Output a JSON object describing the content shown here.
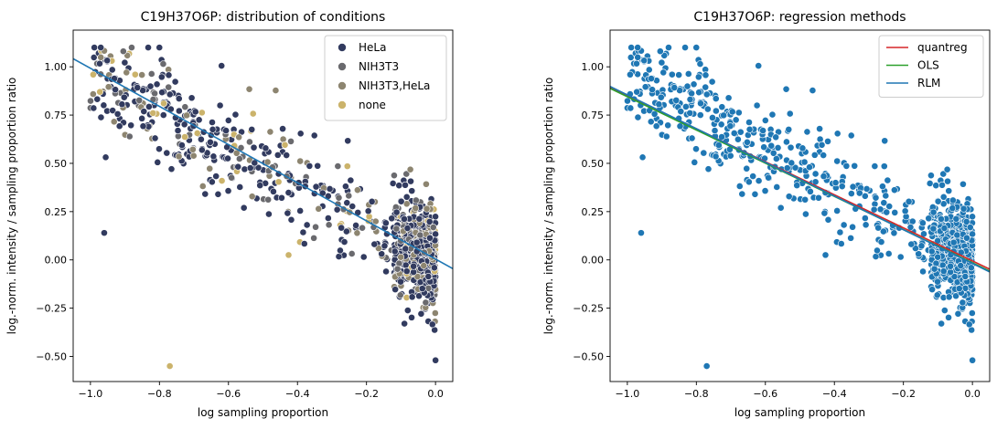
{
  "figure": {
    "colors": {
      "HeLa": "#323b5f",
      "NIH3T3": "#6a6a6e",
      "NIH3T3,HeLa": "#8d8570",
      "none": "#cbb36b",
      "panel2_points": "#1f77b4",
      "quantreg": "#d62728",
      "OLS": "#2ca02c",
      "RLM": "#1f77b4"
    }
  },
  "chart_data": [
    {
      "type": "scatter",
      "title": "C19H37O6P: distribution of conditions",
      "xlabel": "log sampling proportion",
      "ylabel": "log.-norm. intensity / sampling proportion ratio",
      "xlim": [
        -1.05,
        0.05
      ],
      "ylim": [
        -0.63,
        1.19
      ],
      "xticks": [
        -1.0,
        -0.8,
        -0.6,
        -0.4,
        -0.2,
        0.0
      ],
      "xtick_labels": [
        "−1.0",
        "−0.8",
        "−0.6",
        "−0.4",
        "−0.2",
        "0.0"
      ],
      "yticks": [
        -0.5,
        -0.25,
        0.0,
        0.25,
        0.5,
        0.75,
        1.0
      ],
      "ytick_labels": [
        "−0.50",
        "−0.25",
        "0.00",
        "0.25",
        "0.50",
        "0.75",
        "1.00"
      ],
      "legend": {
        "placement": "upper right",
        "entries": [
          "HeLa",
          "NIH3T3",
          "NIH3T3,HeLa",
          "none"
        ]
      },
      "series": [
        {
          "name": "HeLa",
          "marker": "circle",
          "point_count": 620
        },
        {
          "name": "NIH3T3",
          "marker": "circle",
          "point_count": 150
        },
        {
          "name": "NIH3T3,HeLa",
          "marker": "circle",
          "point_count": 140
        },
        {
          "name": "none",
          "marker": "circle",
          "point_count": 60
        }
      ],
      "fit_lines": [
        {
          "kind": "regression",
          "x": [
            -1.05,
            0.05
          ],
          "y": [
            1.042,
            -0.045
          ]
        }
      ],
      "notable_points": [
        {
          "x": -0.97,
          "y": 1.1
        },
        {
          "x": -0.96,
          "y": 0.14
        },
        {
          "x": -0.77,
          "y": -0.55
        },
        {
          "x": 0.0,
          "y": -0.52
        }
      ],
      "trend": {
        "slope": -0.985,
        "intercept": -0.006,
        "noise_sd": 0.13
      }
    },
    {
      "type": "scatter",
      "title": "C19H37O6P: regression methods",
      "xlabel": "log sampling proportion",
      "ylabel": "log.-norm. intensity / sampling proportion ratio",
      "xlim": [
        -1.05,
        0.05
      ],
      "ylim": [
        -0.63,
        1.19
      ],
      "xticks": [
        -1.0,
        -0.8,
        -0.6,
        -0.4,
        -0.2,
        0.0
      ],
      "xtick_labels": [
        "−1.0",
        "−0.8",
        "−0.6",
        "−0.4",
        "−0.2",
        "0.0"
      ],
      "yticks": [
        -0.5,
        -0.25,
        0.0,
        0.25,
        0.5,
        0.75,
        1.0
      ],
      "ytick_labels": [
        "−0.50",
        "−0.25",
        "0.00",
        "0.25",
        "0.50",
        "0.75",
        "1.00"
      ],
      "legend": {
        "placement": "upper right",
        "entries": [
          "quantreg",
          "OLS",
          "RLM"
        ]
      },
      "fit_lines": [
        {
          "name": "quantreg",
          "x": [
            -1.05,
            0.05
          ],
          "y": [
            0.893,
            -0.048
          ]
        },
        {
          "name": "OLS",
          "x": [
            -1.05,
            0.05
          ],
          "y": [
            0.888,
            -0.058
          ]
        },
        {
          "name": "RLM",
          "x": [
            -1.05,
            0.05
          ],
          "y": [
            0.898,
            -0.062
          ]
        }
      ],
      "series": [
        {
          "name": "points",
          "marker": "circle",
          "point_count": 970
        }
      ]
    }
  ]
}
